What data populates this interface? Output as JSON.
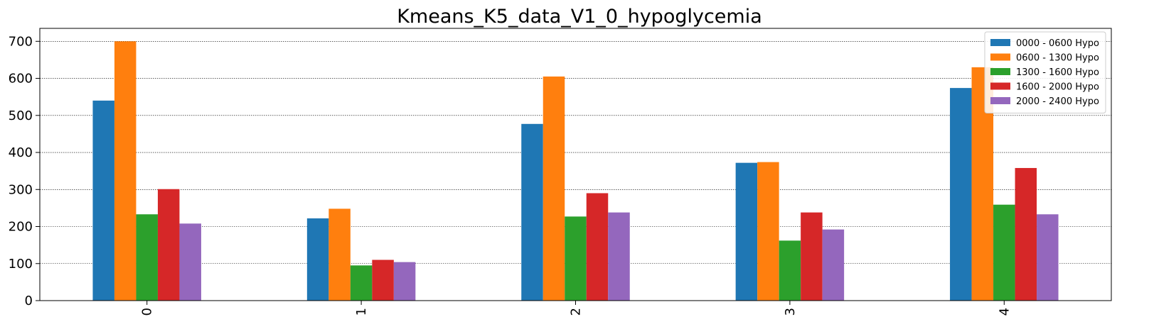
{
  "chart_data": {
    "type": "bar",
    "title": "Kmeans_K5_data_V1_0_hypoglycemia",
    "xlabel": "",
    "ylabel": "",
    "categories": [
      "0",
      "1",
      "2",
      "3",
      "4"
    ],
    "ylim": [
      0,
      735
    ],
    "yticks": [
      0,
      100,
      200,
      300,
      400,
      500,
      600,
      700
    ],
    "grid": "horizontal, dotted",
    "legend_position": "top-right",
    "series": [
      {
        "name": "0000 - 0600 Hypo",
        "color": "#1f77b4",
        "values": [
          540,
          222,
          477,
          372,
          574
        ]
      },
      {
        "name": "0600 - 1300 Hypo",
        "color": "#ff7f0e",
        "values": [
          700,
          248,
          605,
          374,
          630
        ]
      },
      {
        "name": "1300 - 1600 Hypo",
        "color": "#2ca02c",
        "values": [
          233,
          95,
          227,
          162,
          259
        ]
      },
      {
        "name": "1600 - 2000 Hypo",
        "color": "#d62728",
        "values": [
          301,
          110,
          290,
          238,
          358
        ]
      },
      {
        "name": "2000 - 2400 Hypo",
        "color": "#9467bd",
        "values": [
          208,
          104,
          238,
          192,
          233
        ]
      }
    ]
  }
}
